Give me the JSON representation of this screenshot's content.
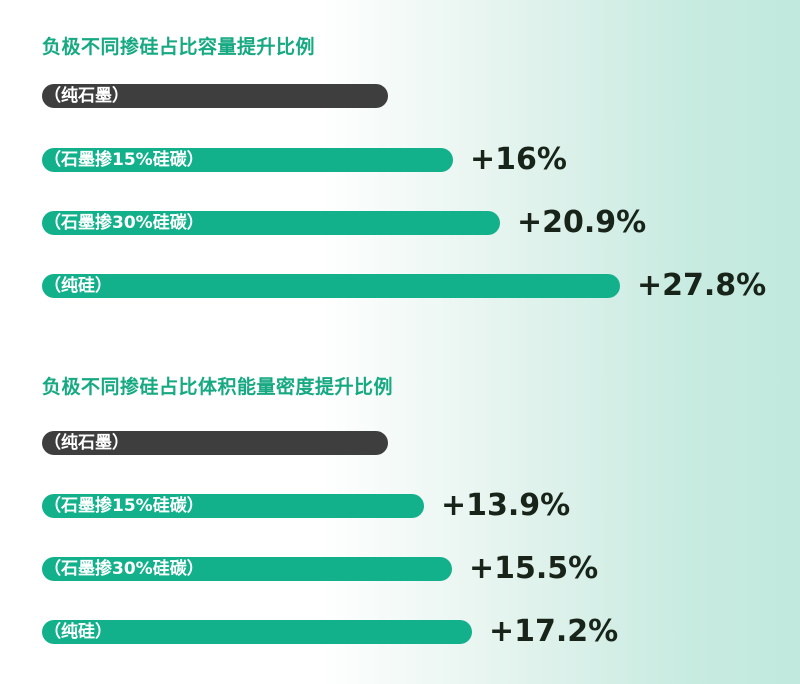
{
  "colors": {
    "title": "#16a982",
    "baseline_bar": "#3e3e3e",
    "bar": "#12b08b",
    "value_text": "#182419"
  },
  "chart_data": [
    {
      "type": "bar",
      "orientation": "horizontal",
      "title": "负极不同掺硅占比容量提升比例",
      "categories": [
        "（纯石墨）",
        "（石墨掺15%硅碳）",
        "（石墨掺30%硅碳）",
        "（纯硅）"
      ],
      "values": [
        0,
        16,
        20.9,
        27.8
      ],
      "labels": [
        "",
        "+16%",
        "+20.9%",
        "+27.8%"
      ]
    },
    {
      "type": "bar",
      "orientation": "horizontal",
      "title": "负极不同掺硅占比体积能量密度提升比例",
      "categories": [
        "（纯石墨）",
        "（石墨掺15%硅碳）",
        "（石墨掺30%硅碳）",
        "（纯硅）"
      ],
      "values": [
        0,
        13.9,
        15.5,
        17.2
      ],
      "labels": [
        "",
        "+13.9%",
        "+15.5%",
        "+17.2%"
      ]
    }
  ]
}
